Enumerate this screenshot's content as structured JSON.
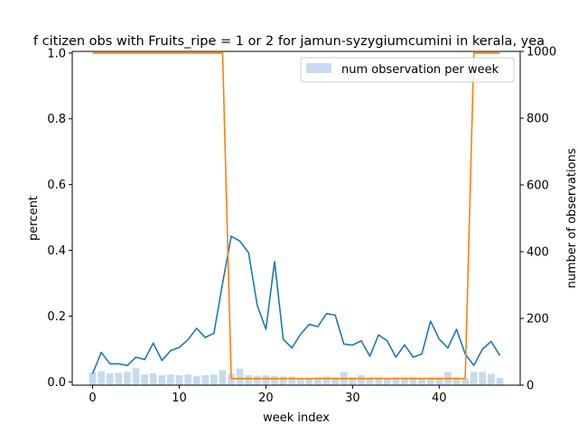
{
  "chart_data": {
    "type": "line",
    "title": "f citizen obs with Fruits_ripe = 1 or 2 for jamun-syzygiumcumini in kerala, yea",
    "xlabel": "week index",
    "ylabel": "percent",
    "y2label": "number of observations",
    "xlim": [
      -2.35,
      49.35
    ],
    "ylim": [
      -0.01,
      1.005
    ],
    "y2lim": [
      0,
      1000
    ],
    "xticks": [
      0,
      10,
      20,
      30,
      40
    ],
    "yticks": [
      0.0,
      0.2,
      0.4,
      0.6,
      0.8,
      1.0
    ],
    "y2ticks": [
      0,
      200,
      400,
      600,
      800,
      1000
    ],
    "grid": false,
    "legend": {
      "placement": "top-right",
      "entries": [
        "num observation per week"
      ]
    },
    "x": [
      0,
      1,
      2,
      3,
      4,
      5,
      6,
      7,
      8,
      9,
      10,
      11,
      12,
      13,
      14,
      15,
      16,
      17,
      18,
      19,
      20,
      21,
      22,
      23,
      24,
      25,
      26,
      27,
      28,
      29,
      30,
      31,
      32,
      33,
      34,
      35,
      36,
      37,
      38,
      39,
      40,
      41,
      42,
      43,
      44,
      45,
      46,
      47
    ],
    "series": [
      {
        "axis": "y",
        "color": "#1f77b4",
        "values": [
          0.025,
          0.09,
          0.055,
          0.055,
          0.05,
          0.075,
          0.068,
          0.118,
          0.065,
          0.095,
          0.105,
          0.128,
          0.163,
          0.135,
          0.148,
          0.3,
          0.443,
          0.428,
          0.393,
          0.233,
          0.16,
          0.366,
          0.13,
          0.103,
          0.145,
          0.175,
          0.168,
          0.208,
          0.203,
          0.115,
          0.112,
          0.125,
          0.078,
          0.143,
          0.125,
          0.075,
          0.113,
          0.075,
          0.085,
          0.185,
          0.13,
          0.103,
          0.16,
          0.085,
          0.05,
          0.1,
          0.123,
          0.08
        ]
      },
      {
        "axis": "y",
        "color": "#ff7f0e",
        "values": [
          1,
          1,
          1,
          1,
          1,
          1,
          1,
          1,
          1,
          1,
          1,
          1,
          1,
          1,
          1,
          1,
          0.01,
          0.01,
          0.01,
          0.01,
          0.01,
          0.01,
          0.01,
          0.01,
          0.01,
          0.01,
          0.01,
          0.01,
          0.01,
          0.01,
          0.01,
          0.01,
          0.01,
          0.01,
          0.01,
          0.01,
          0.01,
          0.01,
          0.01,
          0.01,
          0.01,
          0.01,
          0.01,
          0.01,
          1,
          1,
          1,
          1
        ]
      },
      {
        "axis": "y2",
        "kind": "bar",
        "name": "num observation per week",
        "color": "#c6dbef",
        "values": [
          38,
          42,
          36,
          37,
          40,
          52,
          32,
          35,
          30,
          32,
          30,
          32,
          28,
          30,
          32,
          45,
          35,
          50,
          30,
          28,
          30,
          28,
          26,
          26,
          20,
          22,
          24,
          26,
          24,
          40,
          24,
          30,
          24,
          24,
          20,
          24,
          24,
          24,
          22,
          24,
          24,
          40,
          24,
          20,
          40,
          40,
          34,
          22
        ]
      }
    ]
  }
}
